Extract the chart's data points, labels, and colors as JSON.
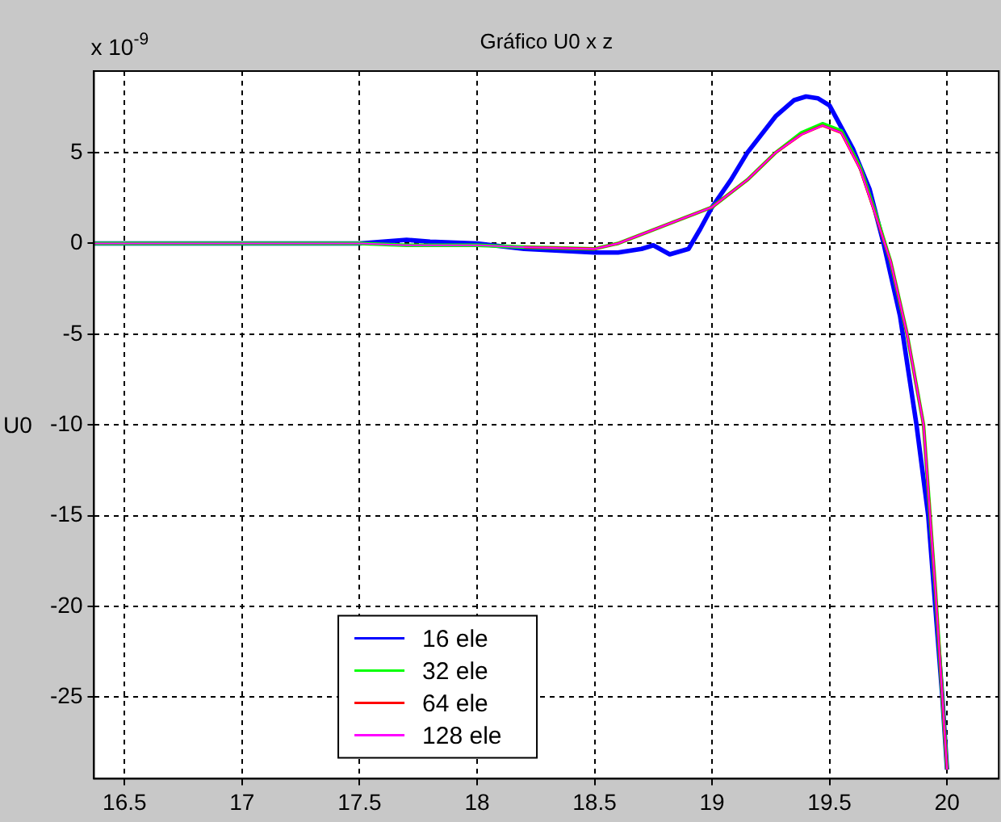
{
  "chart_data": {
    "type": "line",
    "title": "Gráfico U0 x z",
    "ylabel": "U0",
    "annotations": [
      "x 10$^{-9}$"
    ],
    "xlim": [
      16.37,
      20.22
    ],
    "xticks": [
      16.5,
      17,
      17.5,
      18,
      18.5,
      19,
      19.5,
      20
    ],
    "ylim": [
      -29.5,
      9.5
    ],
    "yticks": [
      -25,
      -20,
      -15,
      -10,
      -5,
      0,
      5
    ],
    "grid": true,
    "legend": "bottom left",
    "line_style": "solid",
    "marker": "none",
    "series": [
      {
        "name": "16 ele",
        "color": "#0000ff",
        "x": [
          16.37,
          17.5,
          17.6,
          17.7,
          17.8,
          18.0,
          18.2,
          18.35,
          18.5,
          18.6,
          18.7,
          18.75,
          18.82,
          18.9,
          18.95,
          19.0,
          19.08,
          19.15,
          19.27,
          19.35,
          19.4,
          19.45,
          19.5,
          19.6,
          19.67,
          19.73,
          19.8,
          19.87,
          19.92,
          19.95,
          19.98,
          20.0
        ],
        "values": [
          0,
          0,
          0.1,
          0.2,
          0.1,
          0,
          -0.3,
          -0.4,
          -0.5,
          -0.5,
          -0.3,
          -0.1,
          -0.6,
          -0.3,
          0.8,
          2,
          3.5,
          5,
          7,
          7.9,
          8.1,
          8.0,
          7.6,
          5.2,
          3,
          0,
          -4,
          -10,
          -15,
          -20,
          -25,
          -29
        ]
      },
      {
        "name": "32 ele",
        "color": "#00ff00",
        "x": [
          16.37,
          17.5,
          17.7,
          18.0,
          18.2,
          18.5,
          18.6,
          18.7,
          18.8,
          18.9,
          19.0,
          19.15,
          19.27,
          19.38,
          19.47,
          19.55,
          19.63,
          19.7,
          19.76,
          19.83,
          19.9,
          19.95,
          19.98,
          20.0
        ],
        "values": [
          0,
          0,
          -0.1,
          -0.1,
          -0.2,
          -0.3,
          0,
          0.5,
          1,
          1.5,
          2,
          3.5,
          5,
          6.1,
          6.6,
          6.2,
          4.2,
          1.5,
          -1,
          -5,
          -10,
          -19,
          -25,
          -29
        ]
      },
      {
        "name": "64 ele",
        "color": "#ff0000",
        "x": [
          18.2,
          18.5,
          18.6,
          18.7,
          18.8,
          18.9,
          19.0,
          19.15,
          19.27,
          19.38,
          19.47,
          19.55,
          19.63,
          19.7,
          19.76,
          19.83,
          19.9,
          19.95,
          19.98,
          20.0
        ],
        "values": [
          -0.2,
          -0.3,
          0,
          0.5,
          1,
          1.5,
          2,
          3.5,
          5,
          6,
          6.5,
          6.1,
          4.1,
          1.4,
          -1,
          -5,
          -10,
          -19,
          -25,
          -29
        ]
      },
      {
        "name": "128 ele",
        "color": "#ff00ff",
        "x": [
          16.37,
          17.5,
          17.7,
          18.0,
          18.2,
          18.5,
          18.6,
          18.7,
          18.8,
          18.9,
          19.0,
          19.15,
          19.27,
          19.38,
          19.47,
          19.55,
          19.63,
          19.7,
          19.76,
          19.83,
          19.9,
          19.95,
          19.98,
          20.0
        ],
        "values": [
          0,
          0,
          -0.1,
          -0.1,
          -0.2,
          -0.3,
          0,
          0.5,
          1,
          1.5,
          2,
          3.5,
          5,
          6,
          6.5,
          6.1,
          4.1,
          1.4,
          -1,
          -5,
          -10,
          -19,
          -25,
          -29
        ]
      }
    ]
  }
}
